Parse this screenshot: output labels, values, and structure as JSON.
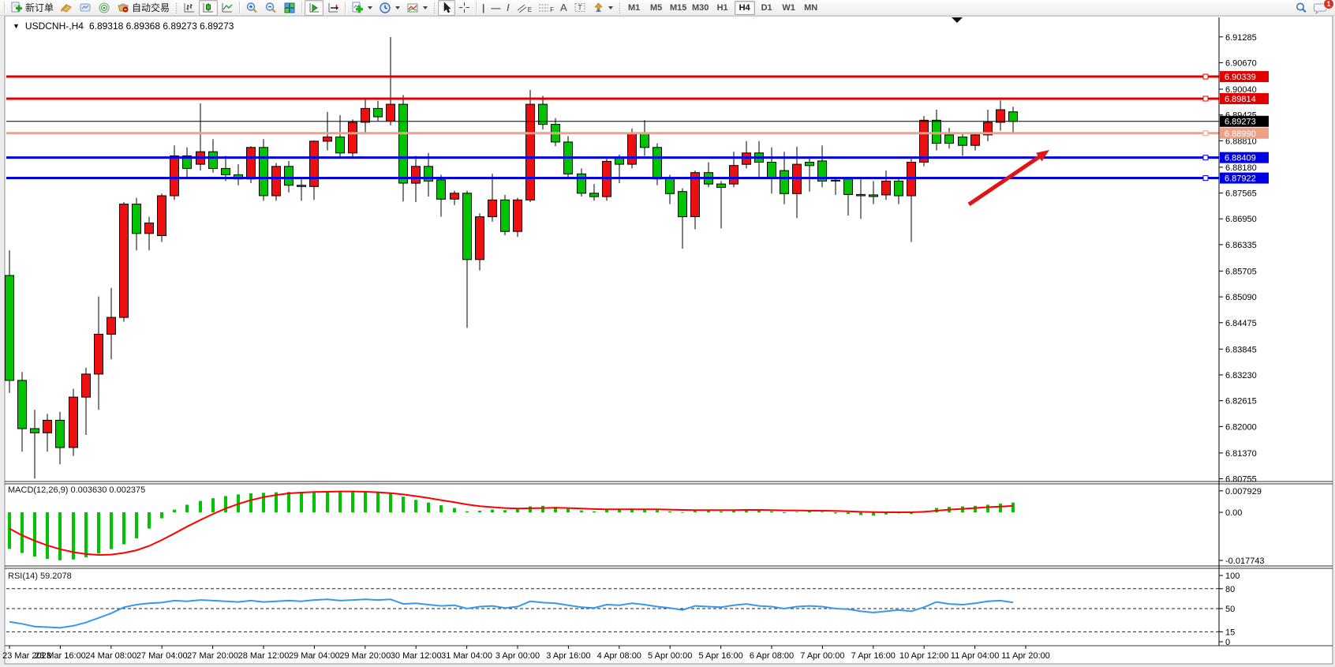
{
  "toolbar": {
    "new_order_label": "新订单",
    "autotrading_label": "自动交易",
    "timeframes": [
      "M1",
      "M5",
      "M15",
      "M30",
      "H1",
      "H4",
      "D1",
      "W1",
      "MN"
    ],
    "active_timeframe": "H4",
    "notification_count": "1",
    "glyphs": {
      "vline": "|",
      "hline": "—",
      "trendline": "/",
      "channel_sub": "E",
      "fibo_sub": "F",
      "text_tool": "A",
      "label_tool": "T"
    }
  },
  "chart_header": {
    "symbol_title": "USDCNH-,H4",
    "ohlc": "6.89318 6.89368 6.89273 6.89273"
  },
  "chart_data": {
    "type": "candlestick",
    "symbol": "USDCNH",
    "timeframe": "H4",
    "colors": {
      "up": "#ee1010",
      "down": "#00c400",
      "wick": "#000000",
      "rsi": "#3898ec",
      "macd_hist": "#00c400",
      "macd_signal": "#ff0000"
    },
    "price_range": {
      "min": 6.8069,
      "max": 6.9145
    },
    "price_axis_ticks": [
      "6.91285",
      "6.90670",
      "6.90040",
      "6.89425",
      "6.88810",
      "6.88180",
      "6.87565",
      "6.86950",
      "6.86335",
      "6.85705",
      "6.85090",
      "6.84475",
      "6.83845",
      "6.83230",
      "6.82615",
      "6.82000",
      "6.81370",
      "6.80755"
    ],
    "time_axis_labels": [
      "23 Mar 2023",
      "23 Mar 16:00",
      "24 Mar 08:00",
      "27 Mar 04:00",
      "27 Mar 20:00",
      "28 Mar 12:00",
      "29 Mar 04:00",
      "29 Mar 20:00",
      "30 Mar 12:00",
      "31 Mar 04:00",
      "3 Apr 00:00",
      "3 Apr 16:00",
      "4 Apr 08:00",
      "5 Apr 00:00",
      "5 Apr 16:00",
      "6 Apr 08:00",
      "7 Apr 00:00",
      "7 Apr 16:00",
      "10 Apr 12:00",
      "11 Apr 04:00",
      "11 Apr 20:00"
    ],
    "levels": [
      {
        "price": 6.90339,
        "label": "6.90339",
        "color": "#e00000",
        "width": 3
      },
      {
        "price": 6.89814,
        "label": "6.89814",
        "color": "#e00000",
        "width": 3
      },
      {
        "price": 6.8899,
        "label": "6.88990",
        "color": "#eda189",
        "width": 3
      },
      {
        "price": 6.88409,
        "label": "6.88409",
        "color": "#0000e8",
        "width": 3
      },
      {
        "price": 6.87922,
        "label": "6.87922",
        "color": "#0000e8",
        "width": 3
      }
    ],
    "current_price": {
      "value": 6.89273,
      "label": "6.89273",
      "badge_color": "#000000"
    },
    "annotation_arrow": {
      "from": [
        1228,
        259
      ],
      "to": [
        1330,
        190
      ],
      "color": "#e01414"
    },
    "candles_ohlc": [
      [
        6.856,
        6.862,
        6.828,
        6.831
      ],
      [
        6.831,
        6.833,
        6.814,
        6.8195
      ],
      [
        6.8195,
        6.824,
        6.8076,
        6.8185
      ],
      [
        6.8185,
        6.823,
        6.814,
        6.8215
      ],
      [
        6.8215,
        6.8235,
        6.811,
        6.815
      ],
      [
        6.815,
        6.829,
        6.813,
        6.827
      ],
      [
        6.827,
        6.834,
        6.818,
        6.8325
      ],
      [
        6.8325,
        6.851,
        6.824,
        6.842
      ],
      [
        6.842,
        6.853,
        6.836,
        6.846
      ],
      [
        6.846,
        6.8735,
        6.845,
        6.873
      ],
      [
        6.873,
        6.8745,
        6.862,
        6.866
      ],
      [
        6.866,
        6.87,
        6.862,
        6.8685
      ],
      [
        6.8655,
        6.8755,
        6.864,
        6.875
      ],
      [
        6.875,
        6.887,
        6.874,
        6.8845
      ],
      [
        6.8845,
        6.8865,
        6.8795,
        6.8815
      ],
      [
        6.8825,
        6.897,
        6.881,
        6.8855
      ],
      [
        6.8855,
        6.8885,
        6.8805,
        6.8815
      ],
      [
        6.8815,
        6.8845,
        6.8785,
        6.88
      ],
      [
        6.88,
        6.8825,
        6.8775,
        6.879
      ],
      [
        6.879,
        6.8868,
        6.878,
        6.8865
      ],
      [
        6.8865,
        6.8885,
        6.8738,
        6.875
      ],
      [
        6.875,
        6.8828,
        6.8738,
        6.882
      ],
      [
        6.882,
        6.8833,
        6.8758,
        6.8775
      ],
      [
        6.8775,
        6.879,
        6.8738,
        6.8772
      ],
      [
        6.8772,
        6.8882,
        6.874,
        6.888
      ],
      [
        6.888,
        6.895,
        6.8858,
        6.889
      ],
      [
        6.889,
        6.8942,
        6.8842,
        6.8852
      ],
      [
        6.8852,
        6.8932,
        6.884,
        6.8925
      ],
      [
        6.8925,
        6.8982,
        6.89,
        6.8958
      ],
      [
        6.8958,
        6.8976,
        6.8928,
        6.8938
      ],
      [
        6.8928,
        6.9128,
        6.8918,
        6.8968
      ],
      [
        6.8968,
        6.899,
        6.8736,
        6.878
      ],
      [
        6.878,
        6.8845,
        6.8735,
        6.882
      ],
      [
        6.882,
        6.8852,
        6.8748,
        6.8785
      ],
      [
        6.8788,
        6.88,
        6.87,
        6.8742
      ],
      [
        6.8742,
        6.8762,
        6.8728,
        6.8756
      ],
      [
        6.8756,
        6.8762,
        6.8435,
        6.8598
      ],
      [
        6.8598,
        6.8708,
        6.8572,
        6.87
      ],
      [
        6.87,
        6.8802,
        6.8688,
        6.874
      ],
      [
        6.874,
        6.8752,
        6.8656,
        6.8665
      ],
      [
        6.8665,
        6.8745,
        6.8652,
        6.874
      ],
      [
        6.874,
        6.9002,
        6.8735,
        6.8968
      ],
      [
        6.8968,
        6.8988,
        6.8908,
        6.892
      ],
      [
        6.892,
        6.8935,
        6.8868,
        6.8878
      ],
      [
        6.8878,
        6.8892,
        6.8795,
        6.8802
      ],
      [
        6.8802,
        6.8815,
        6.8748,
        6.8756
      ],
      [
        6.8756,
        6.8778,
        6.8738,
        6.8748
      ],
      [
        6.8748,
        6.8838,
        6.8738,
        6.8832
      ],
      [
        6.884,
        6.8848,
        6.878,
        6.8825
      ],
      [
        6.8825,
        6.891,
        6.8815,
        6.89
      ],
      [
        6.89,
        6.893,
        6.8845,
        6.8865
      ],
      [
        6.8865,
        6.8875,
        6.8775,
        6.879
      ],
      [
        6.8793,
        6.88,
        6.873,
        6.8755
      ],
      [
        6.876,
        6.8768,
        6.8624,
        6.87
      ],
      [
        6.87,
        6.881,
        6.867,
        6.8805
      ],
      [
        6.8805,
        6.883,
        6.877,
        6.8778
      ],
      [
        6.8778,
        6.8785,
        6.8672,
        6.877
      ],
      [
        6.8778,
        6.8855,
        6.877,
        6.8822
      ],
      [
        6.8825,
        6.888,
        6.8815,
        6.8852
      ],
      [
        6.8852,
        6.888,
        6.879,
        6.883
      ],
      [
        6.883,
        6.8865,
        6.8755,
        6.8792
      ],
      [
        6.881,
        6.8855,
        6.873,
        6.8755
      ],
      [
        6.8755,
        6.8867,
        6.8697,
        6.8825
      ],
      [
        6.883,
        6.8843,
        6.876,
        6.8822
      ],
      [
        6.8833,
        6.887,
        6.877,
        6.8785
      ],
      [
        6.8787,
        6.8795,
        6.8752,
        6.8786
      ],
      [
        6.879,
        6.8795,
        6.8703,
        6.8753
      ],
      [
        6.8753,
        6.879,
        6.8695,
        6.875
      ],
      [
        6.8752,
        6.8785,
        6.873,
        6.8748
      ],
      [
        6.8752,
        6.881,
        6.874,
        6.8785
      ],
      [
        6.8785,
        6.8795,
        6.873,
        6.875
      ],
      [
        6.875,
        6.8838,
        6.864,
        6.883
      ],
      [
        6.883,
        6.894,
        6.882,
        6.893
      ],
      [
        6.893,
        6.8955,
        6.8858,
        6.8875
      ],
      [
        6.8895,
        6.8912,
        6.8862,
        6.8875
      ],
      [
        6.889,
        6.89,
        6.8845,
        6.887
      ],
      [
        6.887,
        6.89,
        6.8858,
        6.8895
      ],
      [
        6.8895,
        6.8955,
        6.888,
        6.8925
      ],
      [
        6.8925,
        6.8977,
        6.8905,
        6.8955
      ],
      [
        6.895,
        6.8962,
        6.8898,
        6.89273
      ]
    ],
    "indicators": [
      {
        "name": "MACD",
        "label": "MACD(12,26,9) 0.003630 0.002375",
        "axis_ticks": [
          "0.007929",
          "0.00",
          "-0.017743"
        ],
        "range": {
          "min": -0.0195,
          "max": 0.0105
        },
        "histogram": [
          -0.0135,
          -0.015,
          -0.0163,
          -0.0172,
          -0.0177,
          -0.0174,
          -0.0166,
          -0.0152,
          -0.0136,
          -0.0118,
          -0.0096,
          -0.006,
          -0.0022,
          0.001,
          0.0028,
          0.0042,
          0.0052,
          0.006,
          0.0066,
          0.007,
          0.0072,
          0.0074,
          0.0075,
          0.0076,
          0.0077,
          0.0078,
          0.0079,
          0.00793,
          0.0078,
          0.0074,
          0.007,
          0.0058,
          0.0046,
          0.0036,
          0.0026,
          0.0016,
          0.0004,
          0.0006,
          0.001,
          0.0008,
          0.0012,
          0.0022,
          0.0024,
          0.002,
          0.0013,
          0.0007,
          0.0004,
          0.0009,
          0.0011,
          0.0014,
          0.0012,
          0.0008,
          0.0004,
          -0.0002,
          0.0006,
          0.0008,
          0.0004,
          0.0008,
          0.0011,
          0.0008,
          0.0004,
          -0.0003,
          0.0002,
          0.0004,
          0.0002,
          -0.0004,
          -0.0006,
          -0.001,
          -0.0012,
          -0.0008,
          -0.0004,
          -0.0006,
          0.0004,
          0.0016,
          0.002,
          0.0022,
          0.0024,
          0.0028,
          0.0032,
          0.0036
        ],
        "signal": [
          -0.006,
          -0.0085,
          -0.0105,
          -0.0122,
          -0.0136,
          -0.0147,
          -0.0154,
          -0.0157,
          -0.0156,
          -0.015,
          -0.014,
          -0.0124,
          -0.0102,
          -0.0078,
          -0.0053,
          -0.0028,
          -0.0006,
          0.0014,
          0.0031,
          0.0045,
          0.0056,
          0.0064,
          0.007,
          0.0073,
          0.0075,
          0.0076,
          0.0077,
          0.0077,
          0.0076,
          0.0074,
          0.0071,
          0.0066,
          0.006,
          0.0053,
          0.0045,
          0.0037,
          0.0029,
          0.0023,
          0.0019,
          0.0016,
          0.0014,
          0.0015,
          0.0016,
          0.0017,
          0.0016,
          0.0014,
          0.0012,
          0.0011,
          0.0011,
          0.0011,
          0.0011,
          0.0011,
          0.001,
          0.0009,
          0.0008,
          0.0008,
          0.0008,
          0.0008,
          0.0009,
          0.0009,
          0.0008,
          0.0007,
          0.0007,
          0.0006,
          0.0006,
          0.0005,
          0.0004,
          0.0002,
          0.0001,
          0.0,
          0.0,
          0.0,
          0.0002,
          0.0006,
          0.001,
          0.0013,
          0.0016,
          0.0019,
          0.0021,
          0.002375
        ]
      },
      {
        "name": "RSI",
        "label": "RSI(14) 59.2078",
        "axis_ticks": [
          "100",
          "80",
          "50",
          "15",
          "0"
        ],
        "dashed_levels": [
          80,
          50,
          15
        ],
        "range": {
          "min": 0,
          "max": 100
        },
        "values": [
          30,
          27,
          23,
          22,
          21,
          24,
          29,
          36,
          43,
          52,
          56,
          58,
          59,
          62,
          61,
          63,
          62,
          61,
          60,
          62,
          60,
          61,
          62,
          61,
          63,
          64,
          62,
          63,
          64,
          63,
          64,
          57,
          58,
          56,
          54,
          55,
          50,
          53,
          54,
          51,
          53,
          61,
          59,
          58,
          55,
          52,
          51,
          56,
          55,
          58,
          56,
          53,
          51,
          48,
          54,
          53,
          52,
          55,
          57,
          54,
          53,
          50,
          53,
          54,
          53,
          50,
          49,
          46,
          44,
          46,
          48,
          46,
          52,
          60,
          57,
          56,
          58,
          61,
          62,
          59.2078
        ]
      }
    ]
  }
}
